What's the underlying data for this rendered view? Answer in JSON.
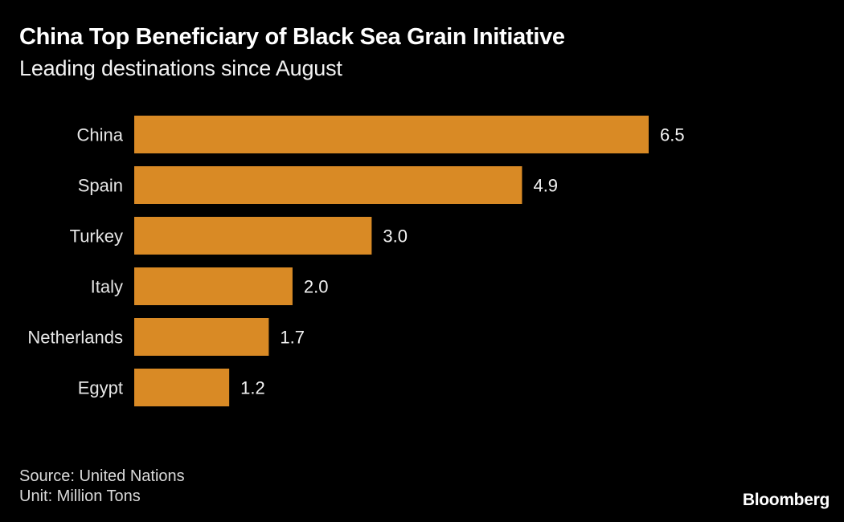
{
  "header": {
    "title": "China Top Beneficiary of Black Sea Grain Initiative",
    "subtitle": "Leading destinations since August"
  },
  "footer": {
    "source": "Source: United Nations",
    "unit": "Unit: Million Tons",
    "brand": "Bloomberg"
  },
  "colors": {
    "bar": "#d98a25",
    "background": "#000000",
    "text": "#ffffff"
  },
  "chart_data": {
    "type": "bar",
    "orientation": "horizontal",
    "title": "China Top Beneficiary of Black Sea Grain Initiative",
    "subtitle": "Leading destinations since August",
    "categories": [
      "China",
      "Spain",
      "Turkey",
      "Italy",
      "Netherlands",
      "Egypt"
    ],
    "values": [
      6.5,
      4.9,
      3.0,
      2.0,
      1.7,
      1.2
    ],
    "value_labels": [
      "6.5",
      "4.9",
      "3.0",
      "2.0",
      "1.7",
      "1.2"
    ],
    "xlabel": "",
    "ylabel": "",
    "unit": "Million Tons",
    "xlim": [
      0,
      6.5
    ],
    "grid": false,
    "legend": "none"
  }
}
